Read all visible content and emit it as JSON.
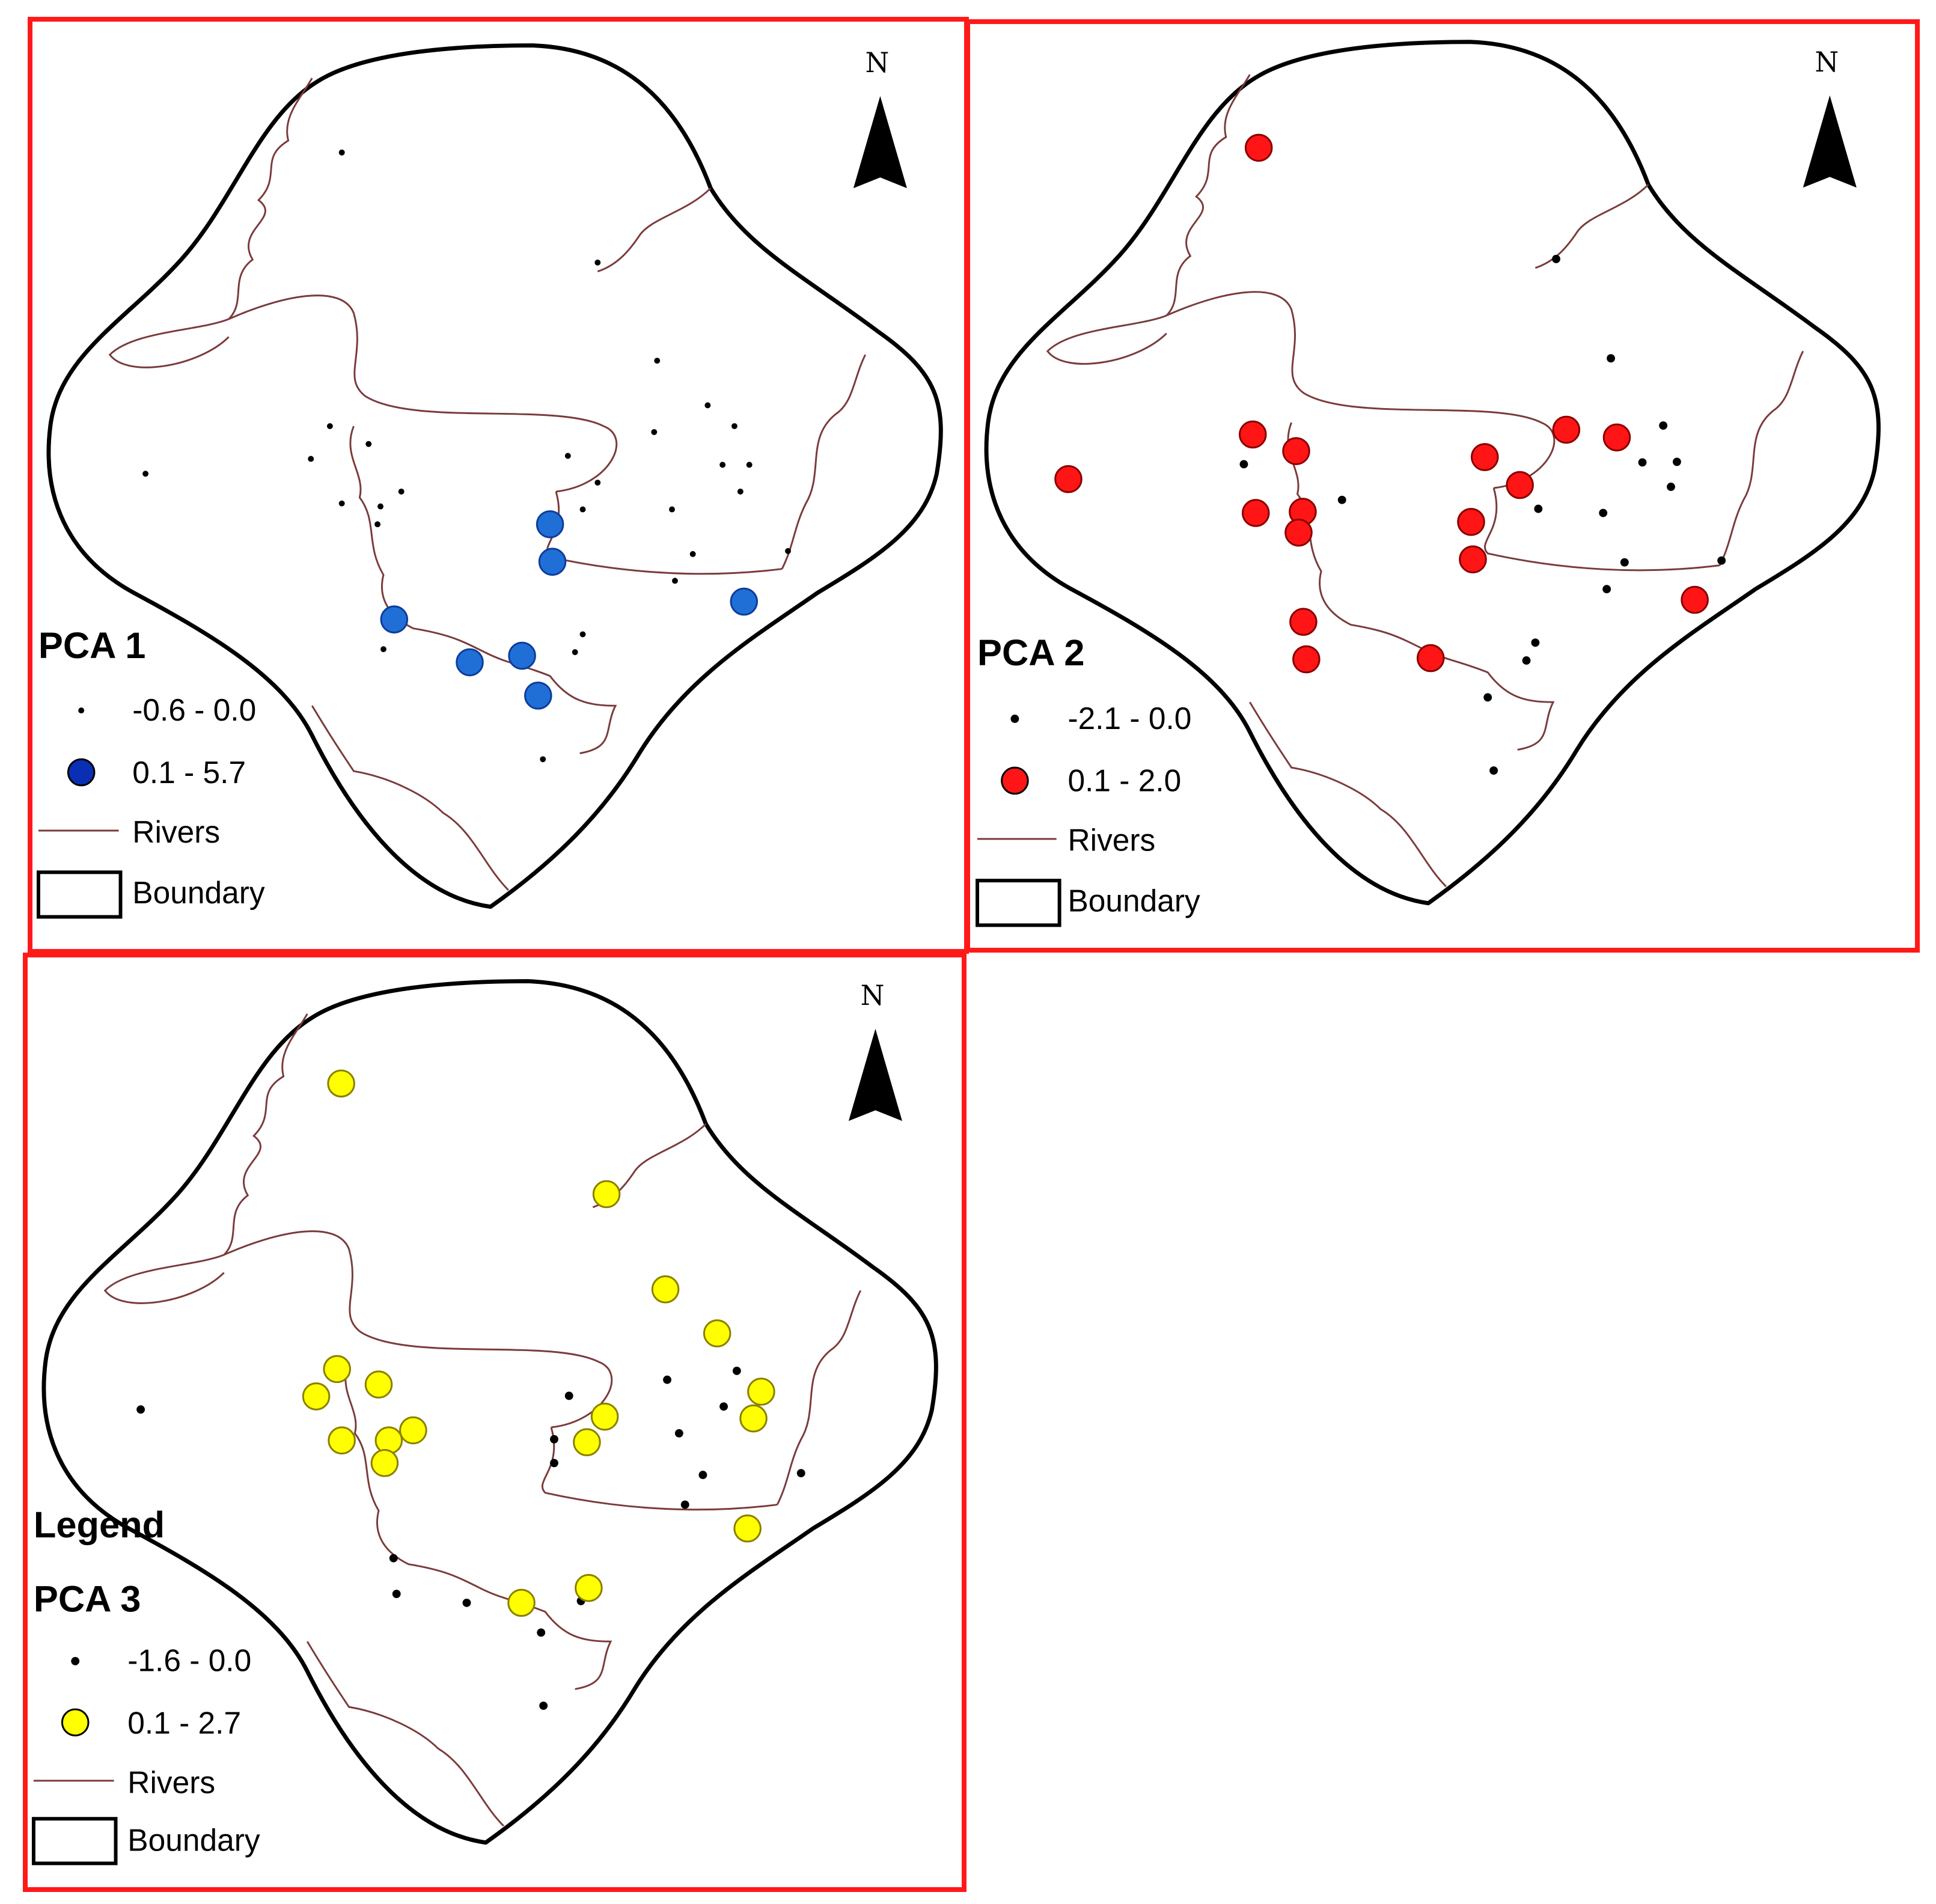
{
  "colors": {
    "frame": "#ff1a1a",
    "river": "#7a3b3b",
    "boundary": "#000000",
    "small_point": "#000000",
    "pca1_large": "#1f6fd6",
    "pca1_legend": "#0a2fb5",
    "pca2_large": "#ff1515",
    "pca3_large": "#ffff00"
  },
  "panels": [
    {
      "north_label": "N",
      "legend_heading": "",
      "legend_title": "PCA 1",
      "legend": [
        {
          "symbol": "small-dot-icon",
          "label": "-0.6 - 0.0"
        },
        {
          "symbol": "large-circle-icon",
          "label": "0.1 - 5.7"
        },
        {
          "symbol": "river-line-icon",
          "label": "Rivers"
        },
        {
          "symbol": "boundary-box-icon",
          "label": "Boundary"
        }
      ]
    },
    {
      "north_label": "N",
      "legend_heading": "",
      "legend_title": "PCA 2",
      "legend": [
        {
          "symbol": "small-dot-icon",
          "label": "-2.1 - 0.0"
        },
        {
          "symbol": "large-circle-icon",
          "label": "0.1 - 2.0"
        },
        {
          "symbol": "river-line-icon",
          "label": "Rivers"
        },
        {
          "symbol": "boundary-box-icon",
          "label": "Boundary"
        }
      ]
    },
    {
      "north_label": "N",
      "legend_heading": "Legend",
      "legend_title": "PCA 3",
      "legend": [
        {
          "symbol": "small-dot-icon",
          "label": "-1.6 - 0.0"
        },
        {
          "symbol": "large-circle-icon",
          "label": "0.1 - 2.7"
        },
        {
          "symbol": "river-line-icon",
          "label": "Rivers"
        },
        {
          "symbol": "boundary-box-icon",
          "label": "Boundary"
        }
      ]
    }
  ]
}
